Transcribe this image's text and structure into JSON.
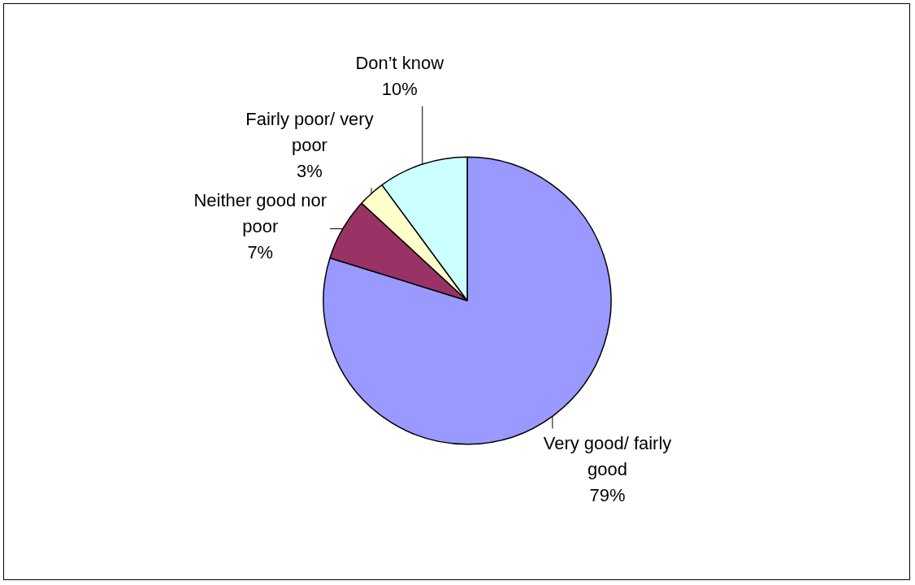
{
  "chart_data": {
    "type": "pie",
    "categories": [
      "Very good/ fairly good",
      "Neither good nor poor",
      "Fairly poor/ very poor",
      "Don’t know"
    ],
    "values": [
      79,
      7,
      3,
      10
    ],
    "colors": [
      "#9999ff",
      "#993366",
      "#ffffcc",
      "#ccffff"
    ],
    "value_labels": [
      "79%",
      "7%",
      "3%",
      "10%"
    ]
  }
}
